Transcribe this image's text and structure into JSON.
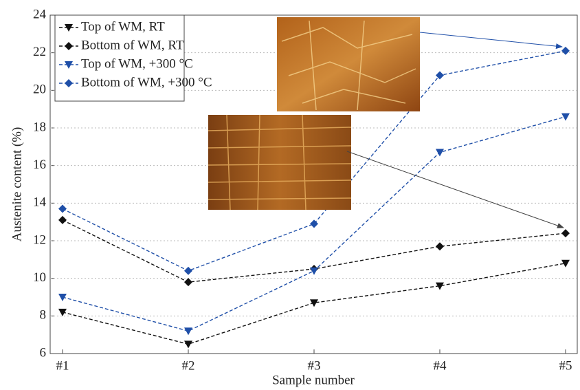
{
  "chart_data": {
    "type": "line",
    "x_label": "Sample number",
    "y_label": "Austenite content (%)",
    "categories": [
      "#1",
      "#2",
      "#3",
      "#4",
      "#5"
    ],
    "series": [
      {
        "name": "Top of WM, RT",
        "color": "#111111",
        "marker": "triangle",
        "values": [
          8.2,
          6.5,
          8.7,
          9.6,
          10.8
        ]
      },
      {
        "name": "Bottom of WM, RT",
        "color": "#111111",
        "marker": "diamond",
        "values": [
          13.1,
          9.8,
          10.5,
          11.7,
          12.4
        ]
      },
      {
        "name": "Top of WM, +300 °C",
        "color": "#1f4fa8",
        "marker": "triangle",
        "values": [
          9.0,
          7.2,
          10.4,
          16.7,
          18.6
        ]
      },
      {
        "name": "Bottom of WM, +300 °C",
        "color": "#1f4fa8",
        "marker": "diamond",
        "values": [
          13.7,
          10.4,
          12.9,
          20.8,
          22.1
        ]
      }
    ],
    "ylim": [
      6,
      24
    ],
    "yticks": [
      6,
      8,
      10,
      12,
      14,
      16,
      18,
      20,
      22,
      24
    ],
    "grid": true,
    "legend": "top-left"
  }
}
